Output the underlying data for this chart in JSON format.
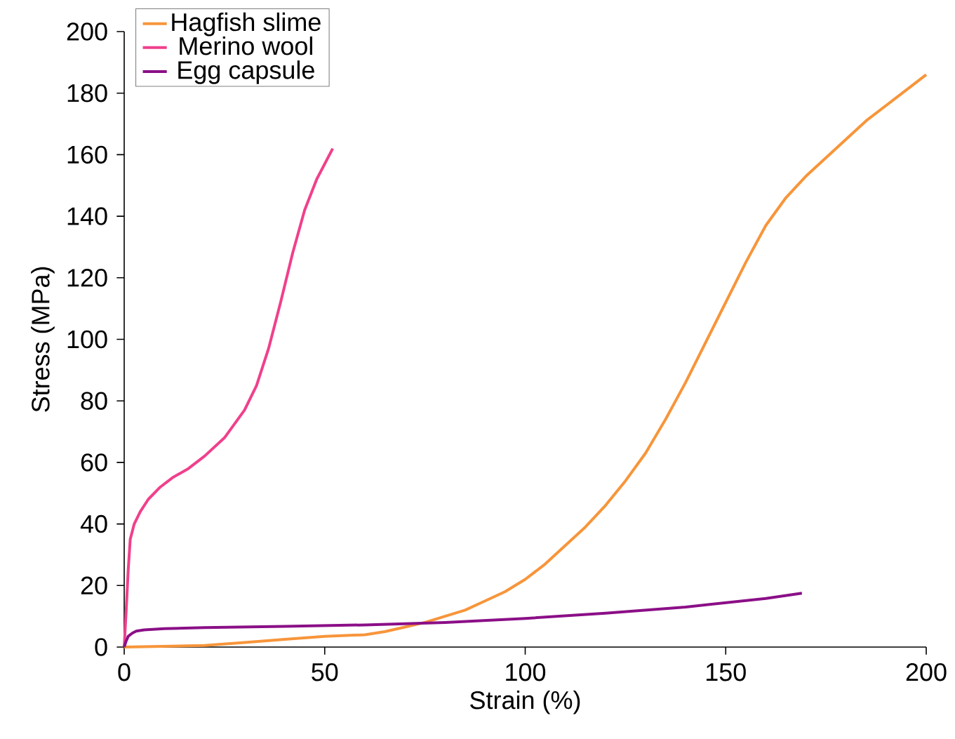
{
  "chart_data": {
    "type": "line",
    "xlabel": "Strain (%)",
    "ylabel": "Stress (MPa)",
    "xlim": [
      0,
      200
    ],
    "ylim": [
      0,
      200
    ],
    "xticks": [
      0,
      50,
      100,
      150,
      200
    ],
    "yticks": [
      0,
      20,
      40,
      60,
      80,
      100,
      120,
      140,
      160,
      180,
      200
    ],
    "grid": false,
    "legend": "top left",
    "marker": "none",
    "line_style": "solid",
    "series": [
      {
        "name": "Hagfish slime",
        "color": "#f7953a",
        "x": [
          0,
          20,
          30,
          40,
          50,
          60,
          65,
          70,
          75,
          80,
          85,
          90,
          95,
          100,
          105,
          110,
          115,
          120,
          125,
          130,
          135,
          140,
          145,
          150,
          155,
          160,
          165,
          170,
          175,
          180,
          185,
          190,
          195,
          200
        ],
        "values": [
          0,
          0.5,
          1.5,
          2.5,
          3.5,
          4,
          5,
          6.5,
          8,
          10,
          12,
          15,
          18,
          22,
          27,
          33,
          39,
          46,
          54,
          63,
          74,
          86,
          99,
          112,
          125,
          137,
          146,
          153,
          159,
          165,
          171,
          176,
          181,
          186
        ]
      },
      {
        "name": "Merino wool",
        "color": "#f0408c",
        "x": [
          0,
          0.5,
          1,
          1.5,
          2.5,
          4,
          6,
          9,
          12,
          16,
          20,
          25,
          30,
          33,
          36,
          39,
          42,
          45,
          48,
          52
        ],
        "values": [
          0,
          12,
          25,
          35,
          40,
          44,
          48,
          52,
          55,
          58,
          62,
          68,
          77,
          85,
          97,
          112,
          128,
          142,
          152,
          162
        ]
      },
      {
        "name": "Egg capsule",
        "color": "#8b0f87",
        "x": [
          0,
          0.5,
          1,
          2,
          3,
          5,
          10,
          20,
          40,
          60,
          80,
          100,
          120,
          140,
          160,
          169
        ],
        "values": [
          0,
          2,
          3.5,
          4.5,
          5.2,
          5.6,
          6,
          6.3,
          6.7,
          7.2,
          8,
          9.3,
          11,
          13,
          15.8,
          17.5
        ]
      }
    ]
  }
}
